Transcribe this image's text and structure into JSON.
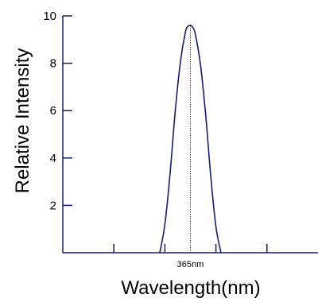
{
  "chart_data": {
    "type": "line",
    "title": "",
    "xlabel": "Wavelength(nm)",
    "ylabel": "Relative Intensity",
    "ylim": [
      0,
      10
    ],
    "yticks": [
      2,
      4,
      6,
      8,
      10
    ],
    "xlim": [
      315,
      415
    ],
    "xticks": [
      335,
      355,
      375,
      395
    ],
    "peak": {
      "x": 365,
      "y": 9.6,
      "label": "365nm"
    },
    "series": [
      {
        "x": [
          353,
          355,
          357,
          359,
          361,
          363,
          364,
          365,
          366,
          367,
          369,
          371,
          373,
          375,
          377
        ],
        "values": [
          0,
          1.2,
          3.3,
          5.9,
          8.0,
          9.3,
          9.55,
          9.6,
          9.5,
          9.2,
          7.9,
          5.8,
          3.2,
          1.1,
          0
        ]
      }
    ],
    "grid": false,
    "colors": {
      "line": "#1a1a6e",
      "axis": "#1a1a6e"
    }
  }
}
